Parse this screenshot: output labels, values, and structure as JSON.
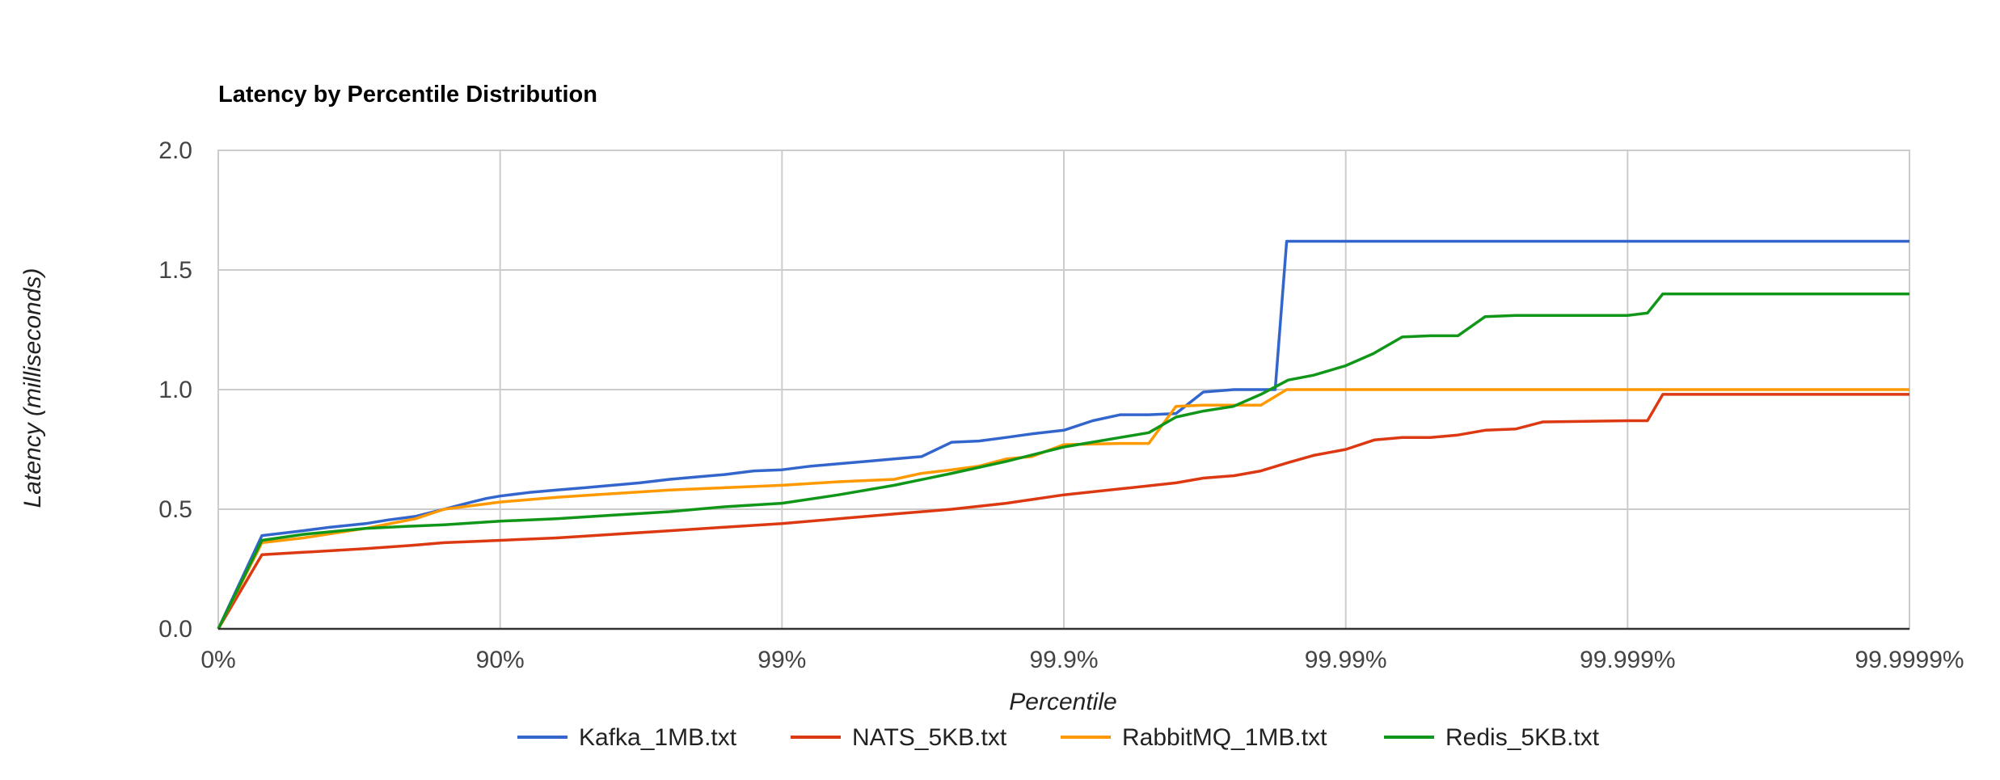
{
  "chart_data": {
    "type": "line",
    "title": "Latency by Percentile Distribution",
    "xlabel": "Percentile",
    "ylabel": "Latency (milliseconds)",
    "x_scale": "log-percentile (nines)",
    "x_ticks": [
      "0%",
      "90%",
      "99%",
      "99.9%",
      "99.99%",
      "99.999%",
      "99.9999%"
    ],
    "y_ticks": [
      "0.0",
      "0.5",
      "1.0",
      "1.5",
      "2.0"
    ],
    "ylim": [
      0,
      2.0
    ],
    "grid": true,
    "legend_position": "bottom",
    "x_note": "x values are percentiles",
    "series": [
      {
        "name": "Kafka_1MB.txt",
        "color": "#3366cc",
        "points": [
          [
            0,
            0
          ],
          [
            30,
            0.39
          ],
          [
            50,
            0.41
          ],
          [
            60,
            0.425
          ],
          [
            70,
            0.44
          ],
          [
            75,
            0.455
          ],
          [
            80,
            0.47
          ],
          [
            84.2,
            0.5
          ],
          [
            87.4,
            0.53
          ],
          [
            88.8,
            0.545
          ],
          [
            90,
            0.555
          ],
          [
            92.1,
            0.57
          ],
          [
            93.7,
            0.58
          ],
          [
            95,
            0.59
          ],
          [
            96,
            0.6
          ],
          [
            96.8,
            0.61
          ],
          [
            97.5,
            0.625
          ],
          [
            98,
            0.635
          ],
          [
            98.4,
            0.645
          ],
          [
            98.74,
            0.66
          ],
          [
            99,
            0.665
          ],
          [
            99.21,
            0.68
          ],
          [
            99.37,
            0.69
          ],
          [
            99.5,
            0.7
          ],
          [
            99.6,
            0.71
          ],
          [
            99.68,
            0.72
          ],
          [
            99.75,
            0.78
          ],
          [
            99.8,
            0.785
          ],
          [
            99.84,
            0.8
          ],
          [
            99.87,
            0.815
          ],
          [
            99.9,
            0.83
          ],
          [
            99.921,
            0.87
          ],
          [
            99.937,
            0.895
          ],
          [
            99.95,
            0.895
          ],
          [
            99.96,
            0.9
          ],
          [
            99.968,
            0.99
          ],
          [
            99.975,
            1.0
          ],
          [
            99.9822,
            1.0
          ],
          [
            99.9838,
            1.62
          ],
          [
            99.9999,
            1.62
          ]
        ]
      },
      {
        "name": "NATS_5KB.txt",
        "color": "#dc3912",
        "points": [
          [
            0,
            0
          ],
          [
            30,
            0.31
          ],
          [
            50,
            0.32
          ],
          [
            70,
            0.335
          ],
          [
            80,
            0.35
          ],
          [
            84.2,
            0.36
          ],
          [
            87.4,
            0.365
          ],
          [
            90,
            0.37
          ],
          [
            93.7,
            0.38
          ],
          [
            96,
            0.395
          ],
          [
            97.5,
            0.41
          ],
          [
            98.4,
            0.425
          ],
          [
            99,
            0.44
          ],
          [
            99.37,
            0.46
          ],
          [
            99.6,
            0.48
          ],
          [
            99.75,
            0.5
          ],
          [
            99.84,
            0.525
          ],
          [
            99.9,
            0.56
          ],
          [
            99.937,
            0.585
          ],
          [
            99.96,
            0.61
          ],
          [
            99.968,
            0.63
          ],
          [
            99.975,
            0.64
          ],
          [
            99.98,
            0.66
          ],
          [
            99.984,
            0.695
          ],
          [
            99.987,
            0.725
          ],
          [
            99.99,
            0.75
          ],
          [
            99.9921,
            0.79
          ],
          [
            99.9937,
            0.8
          ],
          [
            99.995,
            0.8
          ],
          [
            99.996,
            0.81
          ],
          [
            99.9968,
            0.83
          ],
          [
            99.9975,
            0.835
          ],
          [
            99.998,
            0.865
          ],
          [
            99.999,
            0.87
          ],
          [
            99.99915,
            0.87
          ],
          [
            99.99925,
            0.98
          ],
          [
            99.9999,
            0.98
          ]
        ]
      },
      {
        "name": "RabbitMQ_1MB.txt",
        "color": "#ff9900",
        "points": [
          [
            0,
            0
          ],
          [
            30,
            0.36
          ],
          [
            50,
            0.38
          ],
          [
            70,
            0.42
          ],
          [
            80,
            0.46
          ],
          [
            84.2,
            0.5
          ],
          [
            87.4,
            0.515
          ],
          [
            90,
            0.53
          ],
          [
            93.7,
            0.55
          ],
          [
            96,
            0.565
          ],
          [
            97.5,
            0.58
          ],
          [
            98.4,
            0.59
          ],
          [
            99,
            0.6
          ],
          [
            99.37,
            0.615
          ],
          [
            99.6,
            0.625
          ],
          [
            99.68,
            0.65
          ],
          [
            99.75,
            0.665
          ],
          [
            99.8,
            0.68
          ],
          [
            99.84,
            0.71
          ],
          [
            99.87,
            0.72
          ],
          [
            99.9,
            0.77
          ],
          [
            99.937,
            0.775
          ],
          [
            99.95,
            0.775
          ],
          [
            99.96,
            0.93
          ],
          [
            99.968,
            0.935
          ],
          [
            99.975,
            0.935
          ],
          [
            99.98,
            0.935
          ],
          [
            99.9838,
            1.0
          ],
          [
            99.9999,
            1.0
          ]
        ]
      },
      {
        "name": "Redis_5KB.txt",
        "color": "#109618",
        "points": [
          [
            0,
            0
          ],
          [
            30,
            0.37
          ],
          [
            50,
            0.395
          ],
          [
            70,
            0.42
          ],
          [
            80,
            0.43
          ],
          [
            84.2,
            0.435
          ],
          [
            90,
            0.45
          ],
          [
            93.7,
            0.46
          ],
          [
            96,
            0.475
          ],
          [
            97.5,
            0.49
          ],
          [
            98.4,
            0.51
          ],
          [
            99,
            0.525
          ],
          [
            99.37,
            0.56
          ],
          [
            99.6,
            0.6
          ],
          [
            99.75,
            0.65
          ],
          [
            99.84,
            0.7
          ],
          [
            99.9,
            0.76
          ],
          [
            99.937,
            0.8
          ],
          [
            99.95,
            0.82
          ],
          [
            99.96,
            0.885
          ],
          [
            99.968,
            0.91
          ],
          [
            99.975,
            0.93
          ],
          [
            99.98,
            0.98
          ],
          [
            99.984,
            1.04
          ],
          [
            99.987,
            1.06
          ],
          [
            99.99,
            1.1
          ],
          [
            99.992,
            1.15
          ],
          [
            99.9937,
            1.22
          ],
          [
            99.995,
            1.225
          ],
          [
            99.996,
            1.225
          ],
          [
            99.9968,
            1.305
          ],
          [
            99.9975,
            1.31
          ],
          [
            99.999,
            1.31
          ],
          [
            99.99915,
            1.32
          ],
          [
            99.99925,
            1.4
          ],
          [
            99.9999,
            1.4
          ]
        ]
      }
    ]
  }
}
